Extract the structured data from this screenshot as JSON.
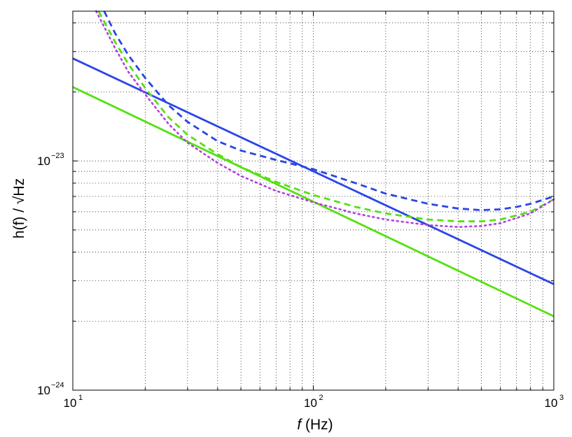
{
  "chart_data": {
    "type": "line",
    "title": "",
    "xlabel_var": "f",
    "xlabel_unit": " (Hz)",
    "ylabel": "h(f) / √Hz",
    "xscale": "log",
    "yscale": "log",
    "xlim": [
      10,
      1000
    ],
    "ylim": [
      1e-24,
      4.5e-23
    ],
    "grid": true,
    "legend": "none",
    "x_ticks": [
      {
        "base": "10",
        "exp": "1",
        "value": 10
      },
      {
        "base": "10",
        "exp": "2",
        "value": 100
      },
      {
        "base": "10",
        "exp": "3",
        "value": 1000
      }
    ],
    "y_ticks": [
      {
        "base": "10",
        "exp": "−24",
        "value": 1e-24
      },
      {
        "base": "10",
        "exp": "−23",
        "value": 1e-23
      }
    ],
    "series": [
      {
        "style": "solid",
        "color": "#2a45e6",
        "x": [
          10,
          1000
        ],
        "y": [
          2.8e-23,
          2.9e-24
        ]
      },
      {
        "style": "solid",
        "color": "#55e010",
        "x": [
          10,
          1000
        ],
        "y": [
          2.1e-23,
          2.1e-24
        ]
      },
      {
        "style": "dashed",
        "color": "#2a45e6",
        "x": [
          13.5,
          15,
          17,
          20,
          25,
          30,
          40,
          50,
          70,
          100,
          150,
          200,
          300,
          400,
          500,
          600,
          700,
          800,
          1000
        ],
        "y": [
          4.5e-23,
          3.6e-23,
          2.9e-23,
          2.3e-23,
          1.75e-23,
          1.48e-23,
          1.22e-23,
          1.11e-23,
          1.01e-23,
          9.2e-24,
          8e-24,
          7.2e-24,
          6.5e-24,
          6.2e-24,
          6.1e-24,
          6.15e-24,
          6.3e-24,
          6.5e-24,
          7e-24
        ]
      },
      {
        "style": "dashed",
        "color": "#55e010",
        "x": [
          12.8,
          15,
          17,
          20,
          25,
          30,
          40,
          50,
          70,
          100,
          150,
          200,
          300,
          400,
          500,
          600,
          800,
          1000
        ],
        "y": [
          4.5e-23,
          3.3e-23,
          2.65e-23,
          2.08e-23,
          1.55e-23,
          1.3e-23,
          1.07e-23,
          9.4e-24,
          8.1e-24,
          7.1e-24,
          6.3e-24,
          5.9e-24,
          5.55e-24,
          5.45e-24,
          5.45e-24,
          5.55e-24,
          6e-24,
          6.8e-24
        ]
      },
      {
        "style": "dotted",
        "color": "#b040e0",
        "x": [
          12.5,
          15,
          17,
          20,
          25,
          30,
          40,
          50,
          70,
          100,
          150,
          200,
          300,
          400,
          500,
          600,
          800,
          1000
        ],
        "y": [
          4.5e-23,
          3.1e-23,
          2.45e-23,
          1.95e-23,
          1.45e-23,
          1.2e-23,
          9.8e-24,
          8.6e-24,
          7.4e-24,
          6.6e-24,
          5.9e-24,
          5.55e-24,
          5.25e-24,
          5.15e-24,
          5.2e-24,
          5.35e-24,
          5.9e-24,
          6.8e-24
        ]
      }
    ]
  }
}
